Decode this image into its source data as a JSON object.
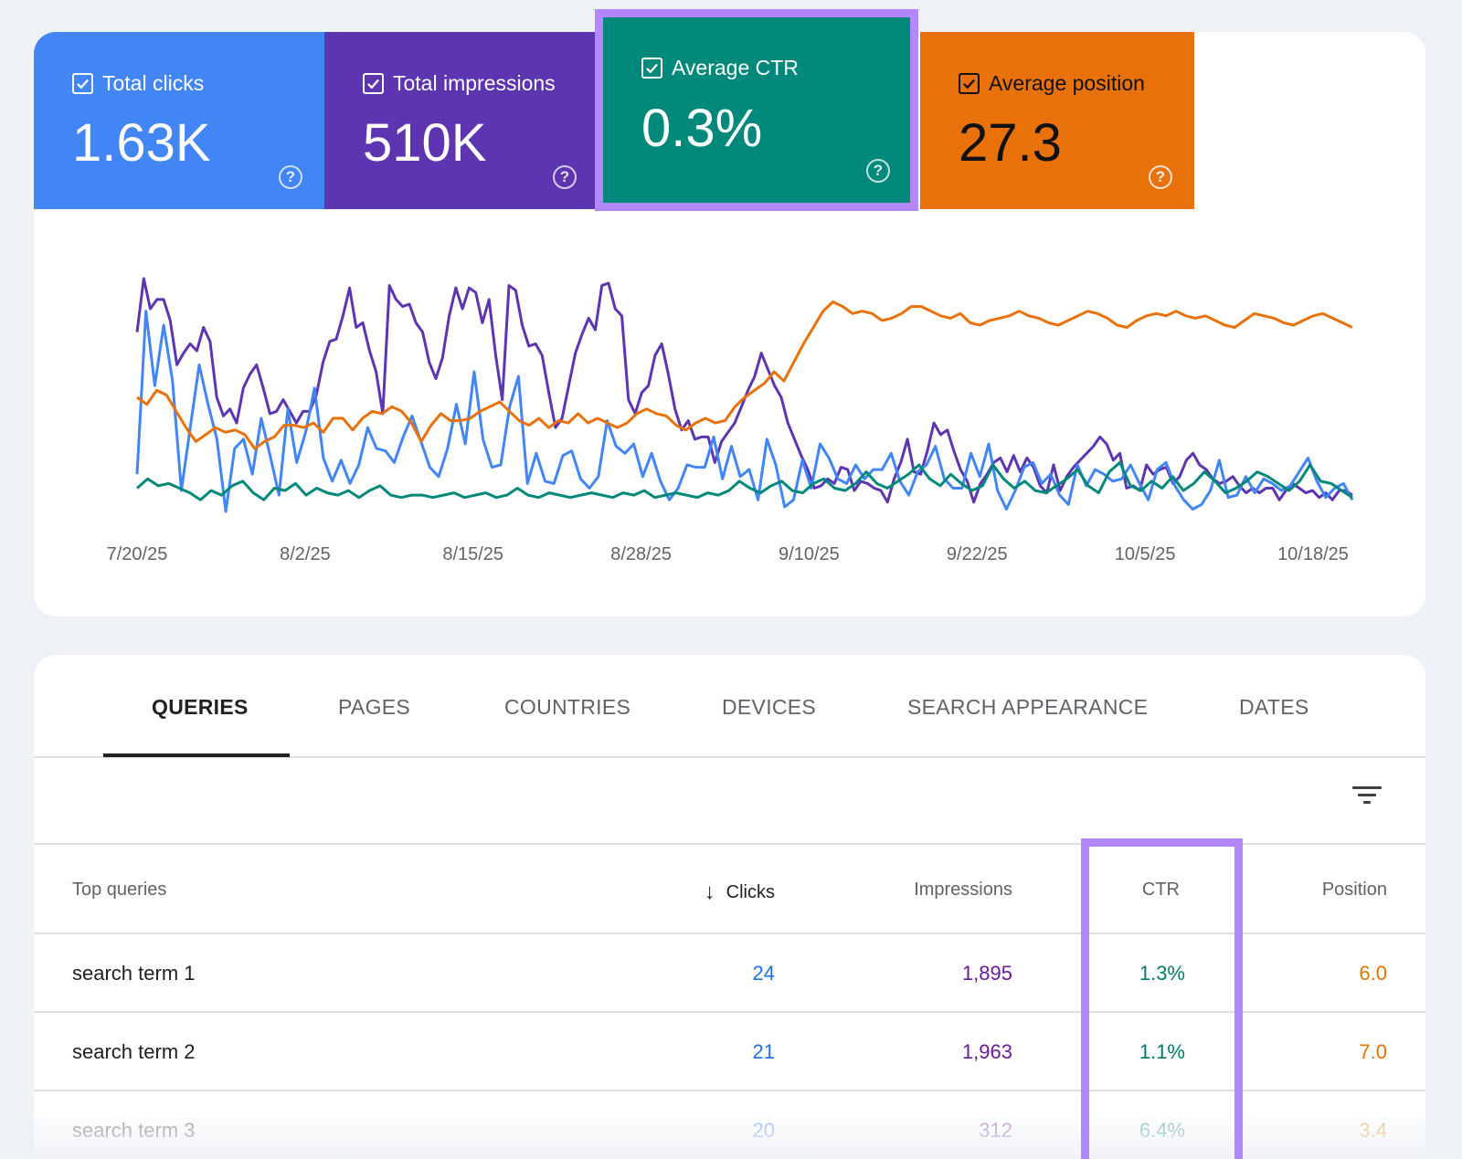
{
  "metrics": {
    "clicks": {
      "label": "Total clicks",
      "value": "1.63K",
      "color": "#4285f4",
      "icon": "checkbox-checked-icon",
      "help_icon": "help-circle-icon",
      "help_glyph": "?"
    },
    "impressions": {
      "label": "Total impressions",
      "value": "510K",
      "color": "#5e35b1",
      "icon": "checkbox-checked-icon",
      "help_icon": "help-circle-icon",
      "help_glyph": "?"
    },
    "ctr": {
      "label": "Average CTR",
      "value": "0.3%",
      "color": "#00897b",
      "icon": "checkbox-checked-icon",
      "help_icon": "help-circle-icon",
      "help_glyph": "?"
    },
    "position": {
      "label": "Average position",
      "value": "27.3",
      "color": "#e8710a",
      "icon": "checkbox-checked-icon",
      "help_icon": "help-circle-icon",
      "help_glyph": "?"
    }
  },
  "highlight_color": "#b388ff",
  "chart_data": {
    "type": "line",
    "x_tick_labels": [
      "7/20/25",
      "8/2/25",
      "8/15/25",
      "8/28/25",
      "9/10/25",
      "9/22/25",
      "10/5/25",
      "10/18/25"
    ],
    "y_axis_visible": false,
    "grid": false,
    "legend": "metric tiles above chart",
    "series": [
      {
        "name": "Total impressions",
        "color": "#5e35b1",
        "values": [
          0.77,
          1.0,
          0.87,
          0.91,
          0.91,
          0.82,
          0.63,
          0.68,
          0.72,
          0.69,
          0.79,
          0.73,
          0.49,
          0.41,
          0.44,
          0.38,
          0.53,
          0.59,
          0.63,
          0.53,
          0.42,
          0.43,
          0.48,
          0.43,
          0.38,
          0.43,
          0.43,
          0.5,
          0.64,
          0.73,
          0.74,
          0.84,
          0.96,
          0.79,
          0.81,
          0.69,
          0.6,
          0.42,
          0.97,
          0.91,
          0.88,
          0.89,
          0.81,
          0.77,
          0.64,
          0.57,
          0.66,
          0.84,
          0.96,
          0.87,
          0.96,
          0.94,
          0.81,
          0.91,
          0.67,
          0.48,
          0.97,
          0.95,
          0.8,
          0.71,
          0.72,
          0.67,
          0.51,
          0.36,
          0.4,
          0.54,
          0.68,
          0.76,
          0.83,
          0.78,
          0.97,
          0.98,
          0.87,
          0.84,
          0.48,
          0.42,
          0.51,
          0.54,
          0.67,
          0.72,
          0.59,
          0.44,
          0.35,
          0.39,
          0.31,
          0.32,
          0.32,
          0.21,
          0.3,
          0.34,
          0.38,
          0.45,
          0.52,
          0.58,
          0.68,
          0.61,
          0.54,
          0.49,
          0.38,
          0.31,
          0.24,
          0.18,
          0.1,
          0.11,
          0.14,
          0.12,
          0.19,
          0.18,
          0.09,
          0.13,
          0.12,
          0.1,
          0.09,
          0.04,
          0.14,
          0.21,
          0.31,
          0.17,
          0.16,
          0.26,
          0.38,
          0.33,
          0.35,
          0.26,
          0.18,
          0.13,
          0.04,
          0.12,
          0.16,
          0.21,
          0.23,
          0.17,
          0.24,
          0.17,
          0.23,
          0.19,
          0.11,
          0.08,
          0.2,
          0.09,
          0.15,
          0.19,
          0.22,
          0.25,
          0.28,
          0.32,
          0.29,
          0.22,
          0.25,
          0.1,
          0.11,
          0.09,
          0.2,
          0.16,
          0.18,
          0.19,
          0.12,
          0.15,
          0.22,
          0.25,
          0.2,
          0.18,
          0.14,
          0.12,
          0.13,
          0.15,
          0.11,
          0.08,
          0.1,
          0.08,
          0.1,
          0.1,
          0.05,
          0.09,
          0.12,
          0.1,
          0.08,
          0.09,
          0.06,
          0.08,
          0.05,
          0.09,
          0.09,
          0.07
        ]
      },
      {
        "name": "Total clicks",
        "color": "#4285f4",
        "values": [
          0.16,
          0.86,
          0.54,
          0.8,
          0.56,
          0.09,
          0.36,
          0.63,
          0.46,
          0.31,
          0.0,
          0.27,
          0.31,
          0.16,
          0.4,
          0.24,
          0.07,
          0.44,
          0.21,
          0.34,
          0.53,
          0.23,
          0.13,
          0.22,
          0.12,
          0.2,
          0.36,
          0.27,
          0.26,
          0.21,
          0.32,
          0.41,
          0.3,
          0.19,
          0.15,
          0.27,
          0.46,
          0.29,
          0.6,
          0.31,
          0.19,
          0.2,
          0.45,
          0.58,
          0.12,
          0.25,
          0.13,
          0.12,
          0.24,
          0.26,
          0.14,
          0.1,
          0.15,
          0.39,
          0.28,
          0.25,
          0.29,
          0.15,
          0.25,
          0.13,
          0.05,
          0.1,
          0.2,
          0.19,
          0.19,
          0.32,
          0.14,
          0.28,
          0.15,
          0.18,
          0.05,
          0.31,
          0.2,
          0.02,
          0.05,
          0.22,
          0.1,
          0.29,
          0.23,
          0.14,
          0.12,
          0.2,
          0.14,
          0.18,
          0.18,
          0.25,
          0.13,
          0.07,
          0.17,
          0.2,
          0.28,
          0.14,
          0.1,
          0.1,
          0.25,
          0.15,
          0.29,
          0.09,
          0.01,
          0.09,
          0.19,
          0.21,
          0.12,
          0.16,
          0.07,
          0.03,
          0.2,
          0.11,
          0.18,
          0.16,
          0.13,
          0.14,
          0.2,
          0.12,
          0.05,
          0.18,
          0.21,
          0.11,
          0.05,
          0.01,
          0.03,
          0.09,
          0.22,
          0.06,
          0.07,
          0.15,
          0.08,
          0.14,
          0.12,
          0.09,
          0.11,
          0.17,
          0.23,
          0.13,
          0.06,
          0.1,
          0.12,
          0.05
        ]
      },
      {
        "name": "Average position",
        "color": "#e8710a",
        "values": [
          0.49,
          0.46,
          0.52,
          0.5,
          0.43,
          0.36,
          0.3,
          0.33,
          0.36,
          0.34,
          0.35,
          0.33,
          0.27,
          0.3,
          0.32,
          0.37,
          0.37,
          0.36,
          0.38,
          0.34,
          0.4,
          0.4,
          0.35,
          0.4,
          0.43,
          0.42,
          0.45,
          0.43,
          0.38,
          0.3,
          0.37,
          0.42,
          0.39,
          0.39,
          0.4,
          0.43,
          0.45,
          0.47,
          0.43,
          0.39,
          0.37,
          0.4,
          0.36,
          0.39,
          0.38,
          0.42,
          0.38,
          0.4,
          0.38,
          0.36,
          0.38,
          0.42,
          0.44,
          0.42,
          0.41,
          0.37,
          0.35,
          0.38,
          0.4,
          0.38,
          0.39,
          0.45,
          0.49,
          0.52,
          0.55,
          0.6,
          0.56,
          0.64,
          0.72,
          0.79,
          0.86,
          0.9,
          0.88,
          0.85,
          0.86,
          0.85,
          0.82,
          0.83,
          0.85,
          0.88,
          0.88,
          0.86,
          0.84,
          0.83,
          0.85,
          0.81,
          0.8,
          0.82,
          0.83,
          0.84,
          0.86,
          0.84,
          0.83,
          0.81,
          0.8,
          0.82,
          0.84,
          0.86,
          0.85,
          0.83,
          0.8,
          0.79,
          0.82,
          0.84,
          0.85,
          0.84,
          0.86,
          0.84,
          0.83,
          0.84,
          0.82,
          0.8,
          0.79,
          0.82,
          0.85,
          0.84,
          0.83,
          0.81,
          0.8,
          0.82,
          0.84,
          0.85,
          0.83,
          0.81,
          0.79
        ]
      },
      {
        "name": "Average CTR",
        "color": "#00897b",
        "values": [
          0.1,
          0.14,
          0.11,
          0.12,
          0.1,
          0.08,
          0.05,
          0.09,
          0.07,
          0.11,
          0.13,
          0.08,
          0.05,
          0.1,
          0.09,
          0.12,
          0.07,
          0.1,
          0.08,
          0.07,
          0.09,
          0.06,
          0.09,
          0.11,
          0.07,
          0.06,
          0.07,
          0.07,
          0.06,
          0.07,
          0.08,
          0.06,
          0.07,
          0.08,
          0.06,
          0.07,
          0.1,
          0.07,
          0.06,
          0.08,
          0.07,
          0.06,
          0.07,
          0.08,
          0.07,
          0.06,
          0.08,
          0.07,
          0.09,
          0.06,
          0.07,
          0.08,
          0.07,
          0.06,
          0.08,
          0.07,
          0.09,
          0.13,
          0.1,
          0.08,
          0.11,
          0.13,
          0.09,
          0.08,
          0.12,
          0.14,
          0.1,
          0.09,
          0.12,
          0.17,
          0.12,
          0.1,
          0.13,
          0.16,
          0.2,
          0.14,
          0.11,
          0.16,
          0.12,
          0.09,
          0.11,
          0.2,
          0.14,
          0.1,
          0.13,
          0.09,
          0.08,
          0.11,
          0.14,
          0.18,
          0.11,
          0.08,
          0.17,
          0.21,
          0.11,
          0.09,
          0.13,
          0.1,
          0.15,
          0.09,
          0.12,
          0.17,
          0.13,
          0.08,
          0.1,
          0.13,
          0.17,
          0.15,
          0.12,
          0.09,
          0.13,
          0.2,
          0.13,
          0.12,
          0.09,
          0.06
        ]
      }
    ]
  },
  "tabs": [
    "QUERIES",
    "PAGES",
    "COUNTRIES",
    "DEVICES",
    "SEARCH APPEARANCE",
    "DATES"
  ],
  "table": {
    "filter_icon": "filter-list-icon",
    "sort_icon": "arrow-down-icon",
    "sort_glyph": "↓",
    "headers": {
      "query": "Top queries",
      "clicks": "Clicks",
      "impressions": "Impressions",
      "ctr": "CTR",
      "position": "Position"
    },
    "rows": [
      {
        "query": "search term 1",
        "clicks": "24",
        "impressions": "1,895",
        "ctr": "1.3%",
        "position": "6.0"
      },
      {
        "query": "search term 2",
        "clicks": "21",
        "impressions": "1,963",
        "ctr": "1.1%",
        "position": "7.0"
      },
      {
        "query": "search term 3",
        "clicks": "20",
        "impressions": "312",
        "ctr": "6.4%",
        "position": "3.4"
      }
    ]
  }
}
